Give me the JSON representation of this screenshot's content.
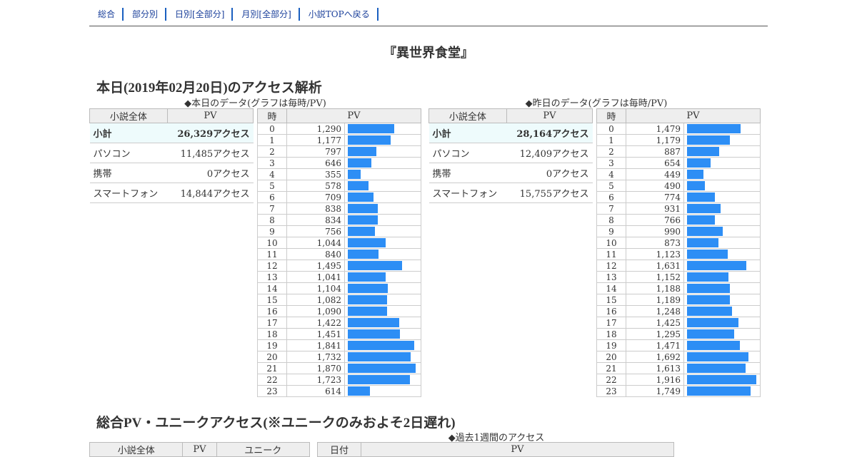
{
  "nav": [
    "総合",
    "部分別",
    "日別[全部分]",
    "月別[全部分]",
    "小説TOPへ戻る"
  ],
  "title": "『異世界食堂』",
  "today_heading": "本日(2019年02月20日)のアクセス解析",
  "total_heading": "総合PV・ユニークアクセス(※ユニークのみおよそ2日遅れ)",
  "today": {
    "caption": "◆本日のデータ(グラフは毎時/PV)",
    "summary_header": [
      "小説全体",
      "PV"
    ],
    "summary": [
      {
        "label": "小計",
        "value": "26,329アクセス"
      },
      {
        "label": "パソコン",
        "value": "11,485アクセス"
      },
      {
        "label": "携帯",
        "value": "0アクセス"
      },
      {
        "label": "スマートフォン",
        "value": "14,844アクセス"
      }
    ],
    "hourly_header": [
      "時",
      "PV"
    ],
    "hours": [
      "0",
      "1",
      "2",
      "3",
      "4",
      "5",
      "6",
      "7",
      "8",
      "9",
      "10",
      "11",
      "12",
      "13",
      "14",
      "15",
      "16",
      "17",
      "18",
      "19",
      "20",
      "21",
      "22",
      "23"
    ],
    "pv_labels": [
      "1,290",
      "1,177",
      "797",
      "646",
      "355",
      "578",
      "709",
      "838",
      "834",
      "756",
      "1,044",
      "840",
      "1,495",
      "1,041",
      "1,104",
      "1,082",
      "1,090",
      "1,422",
      "1,451",
      "1,841",
      "1,732",
      "1,870",
      "1,723",
      "614"
    ],
    "pv": [
      1290,
      1177,
      797,
      646,
      355,
      578,
      709,
      838,
      834,
      756,
      1044,
      840,
      1495,
      1041,
      1104,
      1082,
      1090,
      1422,
      1451,
      1841,
      1732,
      1870,
      1723,
      614
    ]
  },
  "yesterday": {
    "caption": "◆昨日のデータ(グラフは毎時/PV)",
    "summary_header": [
      "小説全体",
      "PV"
    ],
    "summary": [
      {
        "label": "小計",
        "value": "28,164アクセス"
      },
      {
        "label": "パソコン",
        "value": "12,409アクセス"
      },
      {
        "label": "携帯",
        "value": "0アクセス"
      },
      {
        "label": "スマートフォン",
        "value": "15,755アクセス"
      }
    ],
    "hourly_header": [
      "時",
      "PV"
    ],
    "hours": [
      "0",
      "1",
      "2",
      "3",
      "4",
      "5",
      "6",
      "7",
      "8",
      "9",
      "10",
      "11",
      "12",
      "13",
      "14",
      "15",
      "16",
      "17",
      "18",
      "19",
      "20",
      "21",
      "22",
      "23"
    ],
    "pv_labels": [
      "1,479",
      "1,179",
      "887",
      "654",
      "449",
      "490",
      "774",
      "931",
      "766",
      "990",
      "873",
      "1,123",
      "1,631",
      "1,152",
      "1,188",
      "1,189",
      "1,248",
      "1,425",
      "1,295",
      "1,471",
      "1,692",
      "1,613",
      "1,916",
      "1,749"
    ],
    "pv": [
      1479,
      1179,
      887,
      654,
      449,
      490,
      774,
      931,
      766,
      990,
      873,
      1123,
      1631,
      1152,
      1188,
      1189,
      1248,
      1425,
      1295,
      1471,
      1692,
      1613,
      1916,
      1749
    ]
  },
  "week": {
    "caption": "◆過去1週間のアクセス",
    "summary_header": [
      "小説全体",
      "PV",
      "ユニーク"
    ],
    "table_header": [
      "日付",
      "PV"
    ]
  },
  "colors": {
    "bar": "#2d8ef5",
    "nav_link": "#1a3f9a",
    "subtotal_bg": "#eefbfc",
    "header_bg": "#eeeeee"
  }
}
